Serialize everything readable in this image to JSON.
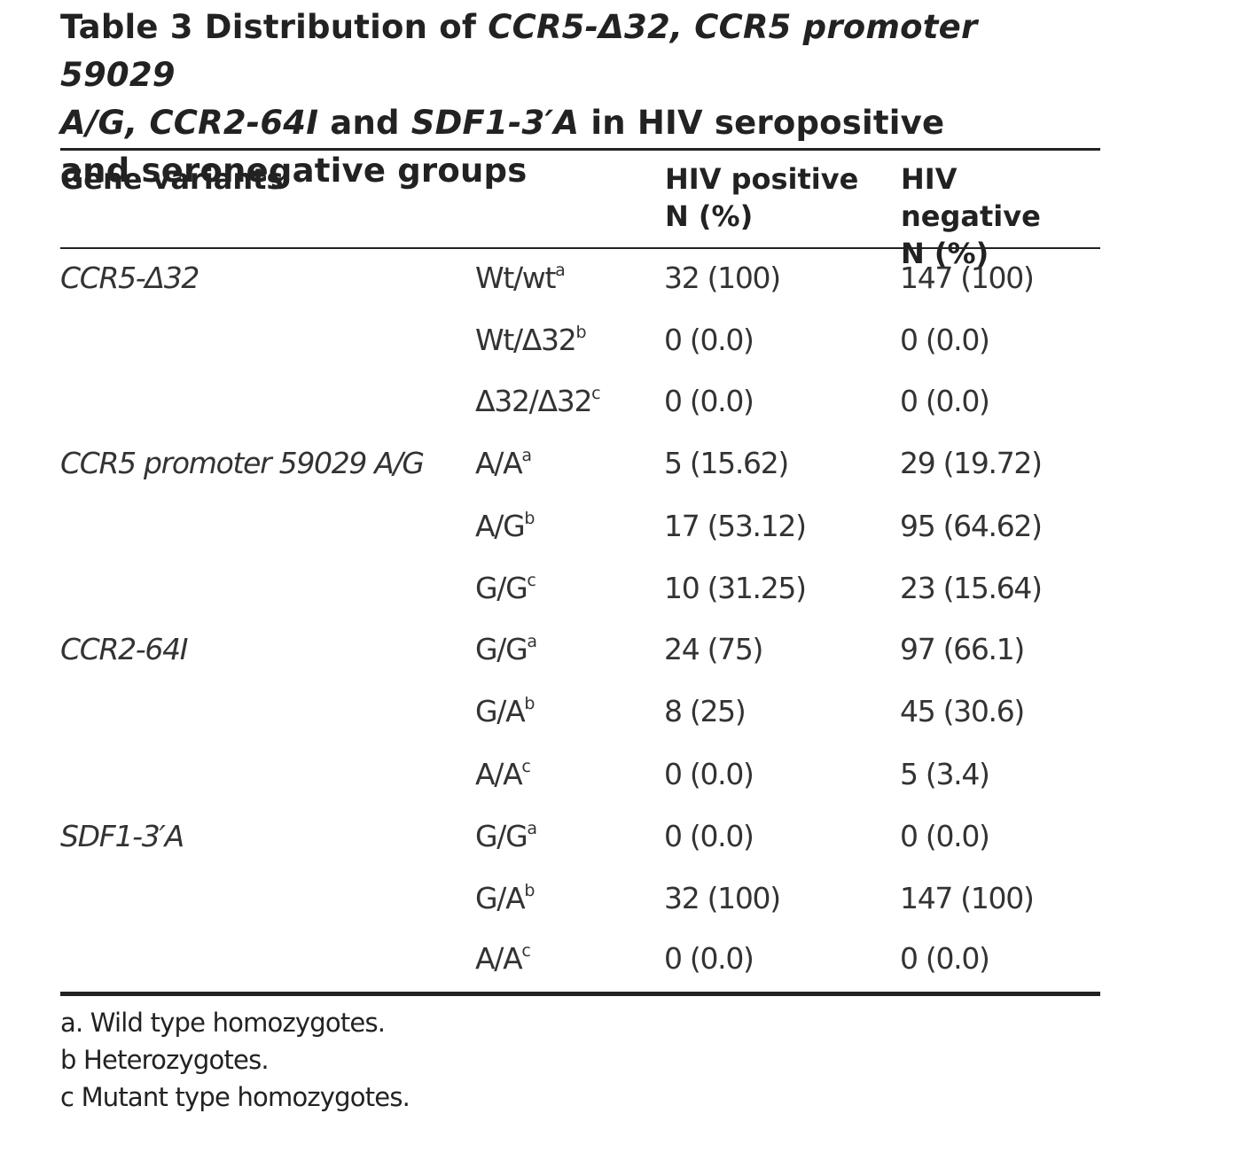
{
  "title": {
    "prefix": "Table 3 Distribution of ",
    "variant1": "CCR5-Δ32, CCR5 promoter 59029",
    "variant1b": "A/G, CCR2-64I",
    "joiner": " and ",
    "variant2": "SDF1-3′A",
    "suffix1": " in HIV seropositive",
    "suffix2": "and seronegative groups"
  },
  "headers": {
    "gene_variants": "Gene variants",
    "hiv_positive_line1": "HIV positive",
    "hiv_positive_line2": "N (%)",
    "hiv_negative_line1": "HIV negative",
    "hiv_negative_line2": "N (%)"
  },
  "rows": [
    {
      "gene": "CCR5-Δ32",
      "genotype": "Wt/wt",
      "sup": "a",
      "hiv_positive": "32 (100)",
      "hiv_negative": "147 (100)"
    },
    {
      "gene": "",
      "genotype": "Wt/Δ32",
      "sup": "b",
      "hiv_positive": "0 (0.0)",
      "hiv_negative": "0 (0.0)"
    },
    {
      "gene": "",
      "genotype": "Δ32/Δ32",
      "sup": "c",
      "hiv_positive": "0 (0.0)",
      "hiv_negative": "0 (0.0)"
    },
    {
      "gene": "CCR5 promoter 59029 A/G",
      "genotype": "A/A",
      "sup": "a",
      "hiv_positive": "5 (15.62)",
      "hiv_negative": "29 (19.72)"
    },
    {
      "gene": "",
      "genotype": "A/G",
      "sup": "b",
      "hiv_positive": "17 (53.12)",
      "hiv_negative": "95 (64.62)"
    },
    {
      "gene": "",
      "genotype": "G/G",
      "sup": "c",
      "hiv_positive": "10 (31.25)",
      "hiv_negative": "23 (15.64)"
    },
    {
      "gene": "CCR2-64I",
      "genotype": "G/G",
      "sup": "a",
      "hiv_positive": "24 (75)",
      "hiv_negative": "97 (66.1)"
    },
    {
      "gene": "",
      "genotype": "G/A",
      "sup": "b",
      "hiv_positive": "8 (25)",
      "hiv_negative": "45 (30.6)"
    },
    {
      "gene": "",
      "genotype": "A/A",
      "sup": "c",
      "hiv_positive": "0 (0.0)",
      "hiv_negative": "5 (3.4)"
    },
    {
      "gene": "SDF1-3′A",
      "genotype": "G/G",
      "sup": "a",
      "hiv_positive": "0 (0.0)",
      "hiv_negative": "0 (0.0)"
    },
    {
      "gene": "",
      "genotype": "G/A",
      "sup": "b",
      "hiv_positive": "32 (100)",
      "hiv_negative": "147 (100)"
    },
    {
      "gene": "",
      "genotype": "A/A",
      "sup": "c",
      "hiv_positive": "0 (0.0)",
      "hiv_negative": "0 (0.0)"
    }
  ],
  "footnotes": [
    "a. Wild type homozygotes.",
    "b Heterozygotes.",
    "c Mutant type homozygotes."
  ]
}
